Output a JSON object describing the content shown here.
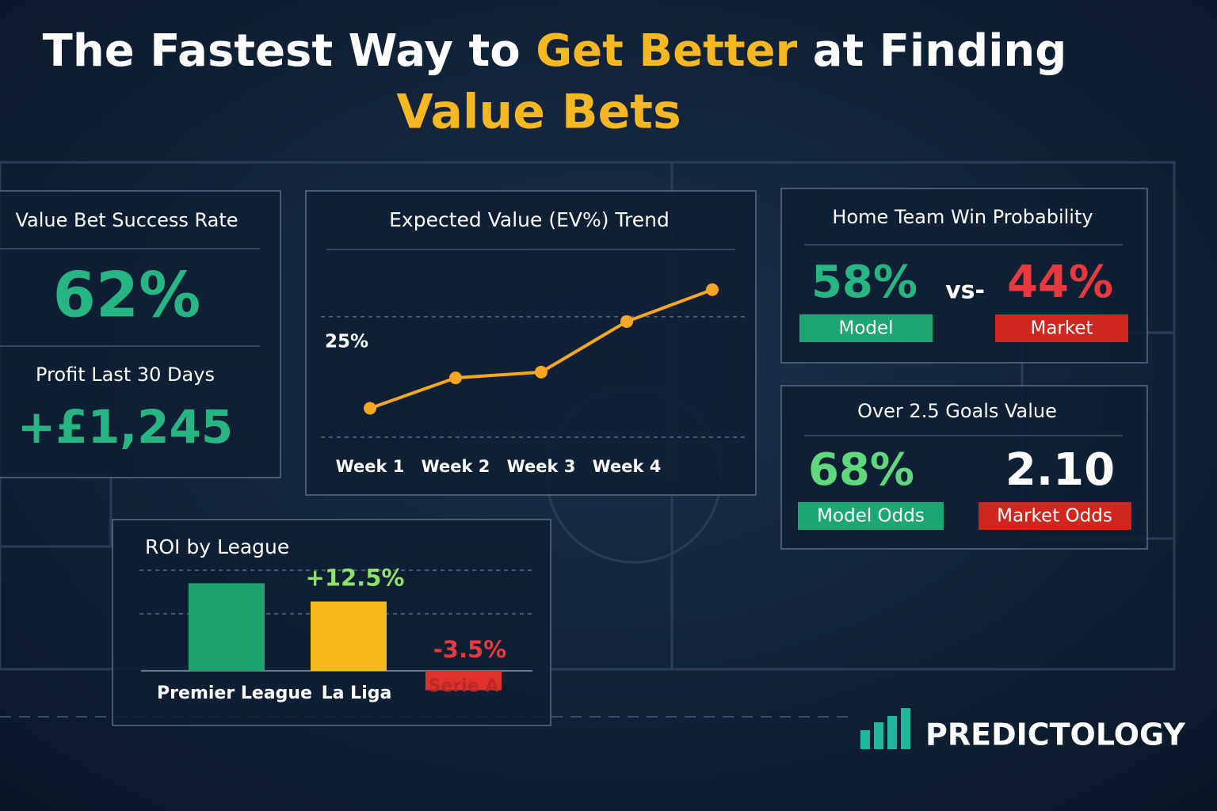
{
  "header": {
    "title_parts": [
      {
        "text": "The Fastest Way to ",
        "color": "#ffffff"
      },
      {
        "text": "Get Better",
        "color": "#f5b722"
      },
      {
        "text": " at Finding",
        "color": "#ffffff"
      }
    ],
    "subtitle": "Value Bets"
  },
  "cards": [
    {
      "title": "Value Bet Success Rate",
      "value": "62%",
      "sub_title": "Profit Last 30 Days",
      "sub_value": "+£1,245"
    },
    {
      "title": "Home Team Win Probability",
      "left_value": "58%",
      "left_label": "Model",
      "separator": "vs-",
      "right_value": "44%",
      "right_label": "Market"
    },
    {
      "title": "Over 2.5 Goals Value",
      "left_value": "68%",
      "left_label": "Model Odds",
      "right_value": "2.10",
      "right_label": "Market Odds"
    }
  ],
  "chart_data": [
    {
      "type": "line",
      "title": "Expected Value (EV%) Trend",
      "categories": [
        "Week 1",
        "Week 2",
        "Week 3",
        "Week 4",
        null
      ],
      "values": [
        6,
        12.3,
        13.5,
        24,
        30.6
      ],
      "color": "#f5a623",
      "ylim": [
        0,
        35
      ],
      "yticks": [
        {
          "value": 25,
          "label": "25%"
        }
      ],
      "grid": true
    },
    {
      "type": "bar",
      "title": "ROI by League",
      "categories": [
        "Premier League",
        "La Liga",
        "Serie A"
      ],
      "values": [
        15.8,
        12.5,
        -3.5
      ],
      "value_labels": [
        null,
        "+12.5%",
        "-3.5%"
      ],
      "colors": [
        "#1fa36e",
        "#f7b818",
        "#e0302a"
      ],
      "ylim": [
        -6,
        20
      ]
    }
  ],
  "brand": "PREDICTOLOGY"
}
